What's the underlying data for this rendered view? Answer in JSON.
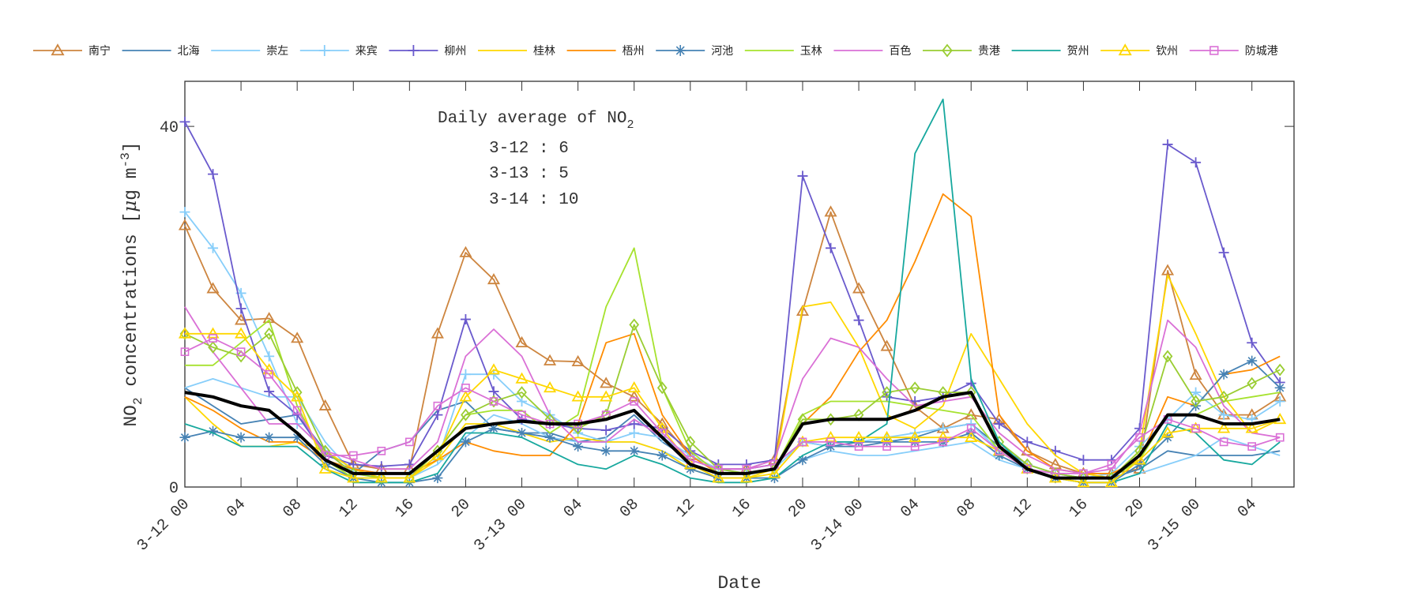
{
  "chart_data": {
    "type": "line",
    "xlabel": "Date",
    "ylabel": {
      "prefix": "NO",
      "sub": "2",
      "middle": " concentrations [",
      "mu": "μ",
      "unit": "g m",
      "sup": "-3",
      "suffix": "]"
    },
    "xlim": [
      0,
      79
    ],
    "ylim": [
      0,
      45
    ],
    "x_unit": "hours since 3-12 00",
    "yticks": [
      0,
      40
    ],
    "ytick_labels": [
      "0",
      "40"
    ],
    "xticks": [
      0,
      4,
      8,
      12,
      16,
      20,
      24,
      28,
      32,
      36,
      40,
      44,
      48,
      52,
      56,
      60,
      64,
      68,
      72,
      76
    ],
    "xtick_labels": [
      "3-12 00",
      "04",
      "08",
      "12",
      "16",
      "20",
      "3-13 00",
      "04",
      "08",
      "12",
      "16",
      "20",
      "3-14 00",
      "04",
      "08",
      "12",
      "16",
      "20",
      "3-15 00",
      "04"
    ],
    "annotation": {
      "title_prefix": "Daily average of NO",
      "title_sub": "2",
      "lines": [
        "3-12 : 6",
        "3-13 : 5",
        "3-14 : 10"
      ]
    },
    "legend_position": "top",
    "x": [
      0,
      2,
      4,
      6,
      8,
      10,
      12,
      14,
      16,
      18,
      20,
      22,
      24,
      26,
      28,
      30,
      32,
      34,
      36,
      38,
      40,
      42,
      44,
      46,
      48,
      50,
      52,
      54,
      56,
      58,
      60,
      62,
      64,
      66,
      68,
      70,
      72,
      74,
      76,
      78
    ],
    "series": [
      {
        "name": "南宁",
        "color": "#cd853f",
        "marker": "triangle",
        "values": [
          29,
          22,
          18.5,
          18.7,
          16.5,
          9,
          2.5,
          2,
          2,
          17,
          26,
          23,
          16,
          14,
          13.9,
          11.5,
          10,
          7,
          3.5,
          2,
          2,
          3,
          19.5,
          30.5,
          22,
          15.6,
          8.9,
          6.5,
          8,
          7.5,
          4,
          2.5,
          1.5,
          1.5,
          2,
          24,
          12.4,
          8,
          8,
          10
        ]
      },
      {
        "name": "北海",
        "color": "#4682b4",
        "marker": "none",
        "values": [
          11,
          9,
          7,
          7.5,
          8,
          4,
          1.5,
          4,
          5,
          8.5,
          9.5,
          6.5,
          6,
          6,
          5,
          5.5,
          8,
          5,
          3,
          2,
          2,
          2.5,
          5,
          4.5,
          4.5,
          5,
          5.5,
          6.5,
          7,
          4.5,
          2.5,
          1.5,
          1,
          1,
          2,
          4,
          3.5,
          3.5,
          3.5,
          4
        ]
      },
      {
        "name": "崇左",
        "color": "#87cefa",
        "marker": "none",
        "values": [
          11,
          12,
          11,
          10,
          10,
          5,
          1.5,
          1,
          1,
          2.5,
          5.5,
          8,
          7,
          5.5,
          5,
          5,
          5,
          4,
          2.5,
          1,
          1,
          1,
          3,
          4,
          3.5,
          3.5,
          4,
          4.5,
          5,
          3,
          2,
          1,
          0.5,
          0.5,
          1.5,
          2.5,
          3.5,
          5.5,
          4.5,
          3.5
        ]
      },
      {
        "name": "来宾",
        "color": "#87cefa",
        "marker": "plus",
        "values": [
          30.5,
          26.5,
          21.5,
          14.5,
          7,
          4,
          2,
          1.5,
          1.5,
          3,
          12.5,
          12.5,
          9.5,
          8,
          6,
          5,
          6,
          5.5,
          3.5,
          2,
          1.5,
          2,
          5,
          4.5,
          5,
          5.5,
          6,
          6.5,
          7,
          4,
          2.5,
          1.5,
          1,
          1.5,
          4.5,
          7.5,
          10.5,
          8,
          7.5,
          9.5
        ]
      },
      {
        "name": "柳州",
        "color": "#6a5acd",
        "marker": "plus",
        "values": [
          40.5,
          34.7,
          19.8,
          10.6,
          8,
          3.5,
          2.5,
          2.3,
          2.5,
          8,
          18.6,
          10.6,
          7.5,
          7,
          6.5,
          6.3,
          7,
          6.5,
          4,
          2.5,
          2.5,
          3,
          34.5,
          26.5,
          18.5,
          10,
          9.5,
          10,
          11.5,
          7,
          5,
          4,
          3,
          3,
          6.5,
          38,
          36,
          26,
          16,
          11.6
        ]
      },
      {
        "name": "桂林",
        "color": "#ffd700",
        "marker": "none",
        "values": [
          10,
          7,
          4.5,
          4.5,
          5,
          4,
          2,
          1,
          1,
          3,
          7,
          7,
          6,
          5,
          5.5,
          5,
          5,
          4,
          2,
          1,
          1,
          2,
          20,
          20.5,
          15.5,
          8,
          6.5,
          9,
          17,
          12,
          7,
          3.5,
          1.5,
          1,
          4,
          23.5,
          17,
          10,
          6,
          7.5
        ]
      },
      {
        "name": "梧州",
        "color": "#ff8c00",
        "marker": "none",
        "values": [
          10,
          8.5,
          6.5,
          5,
          5,
          3,
          2,
          1.5,
          1.5,
          3,
          5,
          4,
          3.5,
          3.5,
          7,
          16,
          17,
          8,
          3.5,
          1.5,
          1.5,
          2,
          7,
          10,
          15,
          18.5,
          25,
          32.5,
          30,
          8,
          4,
          2,
          1.5,
          1.5,
          3,
          10,
          9,
          12.5,
          13,
          14.5
        ]
      },
      {
        "name": "河池",
        "color": "#4682b4",
        "marker": "star",
        "values": [
          5.5,
          6.2,
          5.5,
          5.5,
          5.5,
          2.5,
          1,
          0.5,
          0.5,
          1,
          5,
          6.5,
          6,
          5.5,
          4.5,
          4,
          4,
          3.5,
          2,
          1,
          1,
          1,
          3,
          4.5,
          5,
          5,
          5,
          5,
          6,
          3.5,
          2,
          1,
          0.5,
          0.5,
          2.5,
          5.5,
          9,
          12.5,
          14,
          11
        ]
      },
      {
        "name": "玉林",
        "color": "#a6e22e",
        "marker": "none",
        "values": [
          13.5,
          13.5,
          16,
          18.5,
          9,
          3,
          1,
          1,
          1,
          4,
          8,
          8.5,
          8.5,
          6,
          8,
          20,
          26.5,
          11,
          4,
          1.5,
          1.5,
          2,
          8,
          9.5,
          9.5,
          9.5,
          9,
          8.5,
          8,
          4,
          2,
          1,
          1,
          1,
          3,
          8,
          8,
          9.5,
          10,
          10.5
        ]
      },
      {
        "name": "百色",
        "color": "#da70d6",
        "marker": "none",
        "values": [
          20,
          15,
          11,
          7,
          7,
          4,
          3,
          2,
          2,
          5,
          14.5,
          17.5,
          14.5,
          8,
          5,
          5,
          7.5,
          5.5,
          3,
          2,
          2,
          3,
          12,
          16.5,
          15.5,
          12,
          9,
          9.5,
          10,
          6,
          3.5,
          2,
          1.5,
          2,
          6,
          18.5,
          15.5,
          9,
          6,
          5.5
        ]
      },
      {
        "name": "贵港",
        "color": "#9acd32",
        "marker": "diamond",
        "values": [
          17,
          15.5,
          14.5,
          17,
          10.5,
          4,
          1.5,
          1,
          1,
          4,
          8,
          9.5,
          10.5,
          7.5,
          6.5,
          8,
          18,
          11,
          5,
          2,
          1.5,
          2,
          7.5,
          7.5,
          8,
          10.5,
          11,
          10.5,
          10.5,
          5,
          2.5,
          1.5,
          1,
          1,
          4,
          14.5,
          9.5,
          10,
          11.5,
          13
        ]
      },
      {
        "name": "贺州",
        "color": "#17a89e",
        "marker": "none",
        "values": [
          7,
          6,
          4.5,
          4.5,
          4.5,
          2,
          0.5,
          0.5,
          0.5,
          1.5,
          6,
          6,
          5.5,
          4,
          2.5,
          2,
          3.5,
          2.5,
          1,
          0.5,
          0.5,
          1,
          3.5,
          5,
          5,
          7,
          37,
          43,
          12,
          5,
          2,
          1,
          0.5,
          0.5,
          1.5,
          7,
          6,
          3,
          2.5,
          5
        ]
      },
      {
        "name": "钦州",
        "color": "#ffd700",
        "marker": "triangle",
        "values": [
          17,
          17,
          17,
          13,
          10,
          2,
          1,
          1,
          1,
          3.5,
          10,
          13,
          12,
          11,
          10,
          10,
          11,
          6.5,
          2.5,
          1,
          1,
          1.5,
          5,
          5.5,
          5.5,
          5.5,
          5.5,
          5.5,
          5.5,
          4,
          2,
          1,
          0.5,
          0.5,
          3,
          6,
          6.5,
          6.5,
          6.5,
          7.5
        ]
      },
      {
        "name": "防城港",
        "color": "#da70d6",
        "marker": "square",
        "values": [
          15,
          16.5,
          15,
          12.5,
          8.5,
          3.5,
          3.5,
          4,
          5,
          9,
          11,
          9.5,
          8,
          7,
          7,
          8,
          9.5,
          6,
          3,
          2,
          2,
          2.5,
          5,
          5,
          4.5,
          4.5,
          4.5,
          5,
          6.5,
          4,
          2,
          1.5,
          1.5,
          2.5,
          5.5,
          7.5,
          6.5,
          5,
          4.5,
          5.5
        ]
      }
    ],
    "average": {
      "color": "#000000",
      "values": [
        10.5,
        10,
        9,
        8.5,
        6,
        3,
        1.5,
        1.5,
        1.5,
        4,
        6.5,
        7,
        7.3,
        7,
        7,
        7.5,
        8.5,
        5.5,
        2.5,
        1.5,
        1.5,
        2,
        7,
        7.5,
        7.5,
        7.5,
        8.5,
        10,
        10.5,
        4.5,
        2,
        1,
        1,
        1,
        3.5,
        8,
        8,
        7,
        7,
        7.5
      ]
    }
  }
}
